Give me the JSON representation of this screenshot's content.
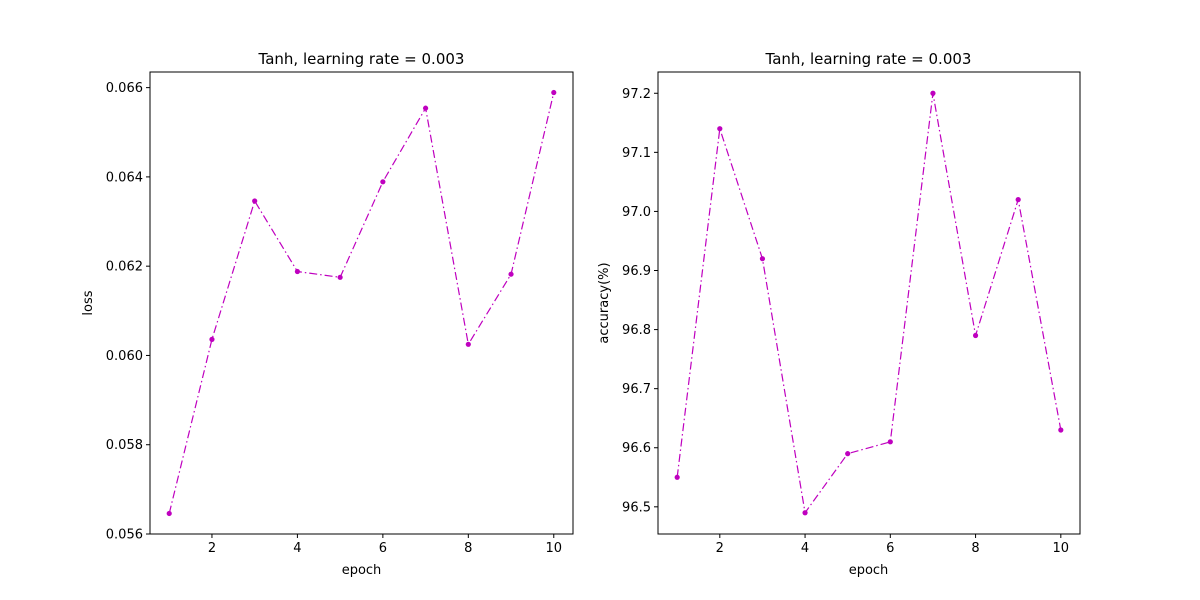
{
  "chart_data": [
    {
      "type": "line",
      "title": "Tanh, learning rate = 0.003",
      "xlabel": "epoch",
      "ylabel": "loss",
      "x": [
        1,
        2,
        3,
        4,
        5,
        6,
        7,
        8,
        9,
        10
      ],
      "series": [
        {
          "values": [
            0.05646,
            0.06036,
            0.06346,
            0.06188,
            0.06175,
            0.06389,
            0.06554,
            0.06025,
            0.06182,
            0.06589
          ],
          "color": "#bf00bf",
          "line_style": "dash-dot",
          "marker": "dot"
        }
      ],
      "xlim": [
        0.55,
        10.45
      ],
      "ylim": [
        0.056,
        0.06635
      ],
      "xticks": [
        2,
        4,
        6,
        8,
        10
      ],
      "xtick_labels": [
        "2",
        "4",
        "6",
        "8",
        "10"
      ],
      "yticks": [
        0.056,
        0.058,
        0.06,
        0.062,
        0.064,
        0.066
      ],
      "ytick_labels": [
        "0.056",
        "0.058",
        "0.060",
        "0.062",
        "0.064",
        "0.066"
      ],
      "grid": false
    },
    {
      "type": "line",
      "title": "Tanh, learning rate = 0.003",
      "xlabel": "epoch",
      "ylabel": "accuracy(%)",
      "x": [
        1,
        2,
        3,
        4,
        5,
        6,
        7,
        8,
        9,
        10
      ],
      "series": [
        {
          "values": [
            96.55,
            97.14,
            96.92,
            96.49,
            96.59,
            96.61,
            97.2,
            96.79,
            97.02,
            96.63
          ],
          "color": "#bf00bf",
          "line_style": "dash-dot",
          "marker": "dot"
        }
      ],
      "xlim": [
        0.55,
        10.45
      ],
      "ylim": [
        96.454,
        97.236
      ],
      "xticks": [
        2,
        4,
        6,
        8,
        10
      ],
      "xtick_labels": [
        "2",
        "4",
        "6",
        "8",
        "10"
      ],
      "yticks": [
        96.5,
        96.6,
        96.7,
        96.8,
        96.9,
        97.0,
        97.1,
        97.2
      ],
      "ytick_labels": [
        "96.5",
        "96.6",
        "96.7",
        "96.8",
        "96.9",
        "97.0",
        "97.1",
        "97.2"
      ],
      "grid": false
    }
  ]
}
